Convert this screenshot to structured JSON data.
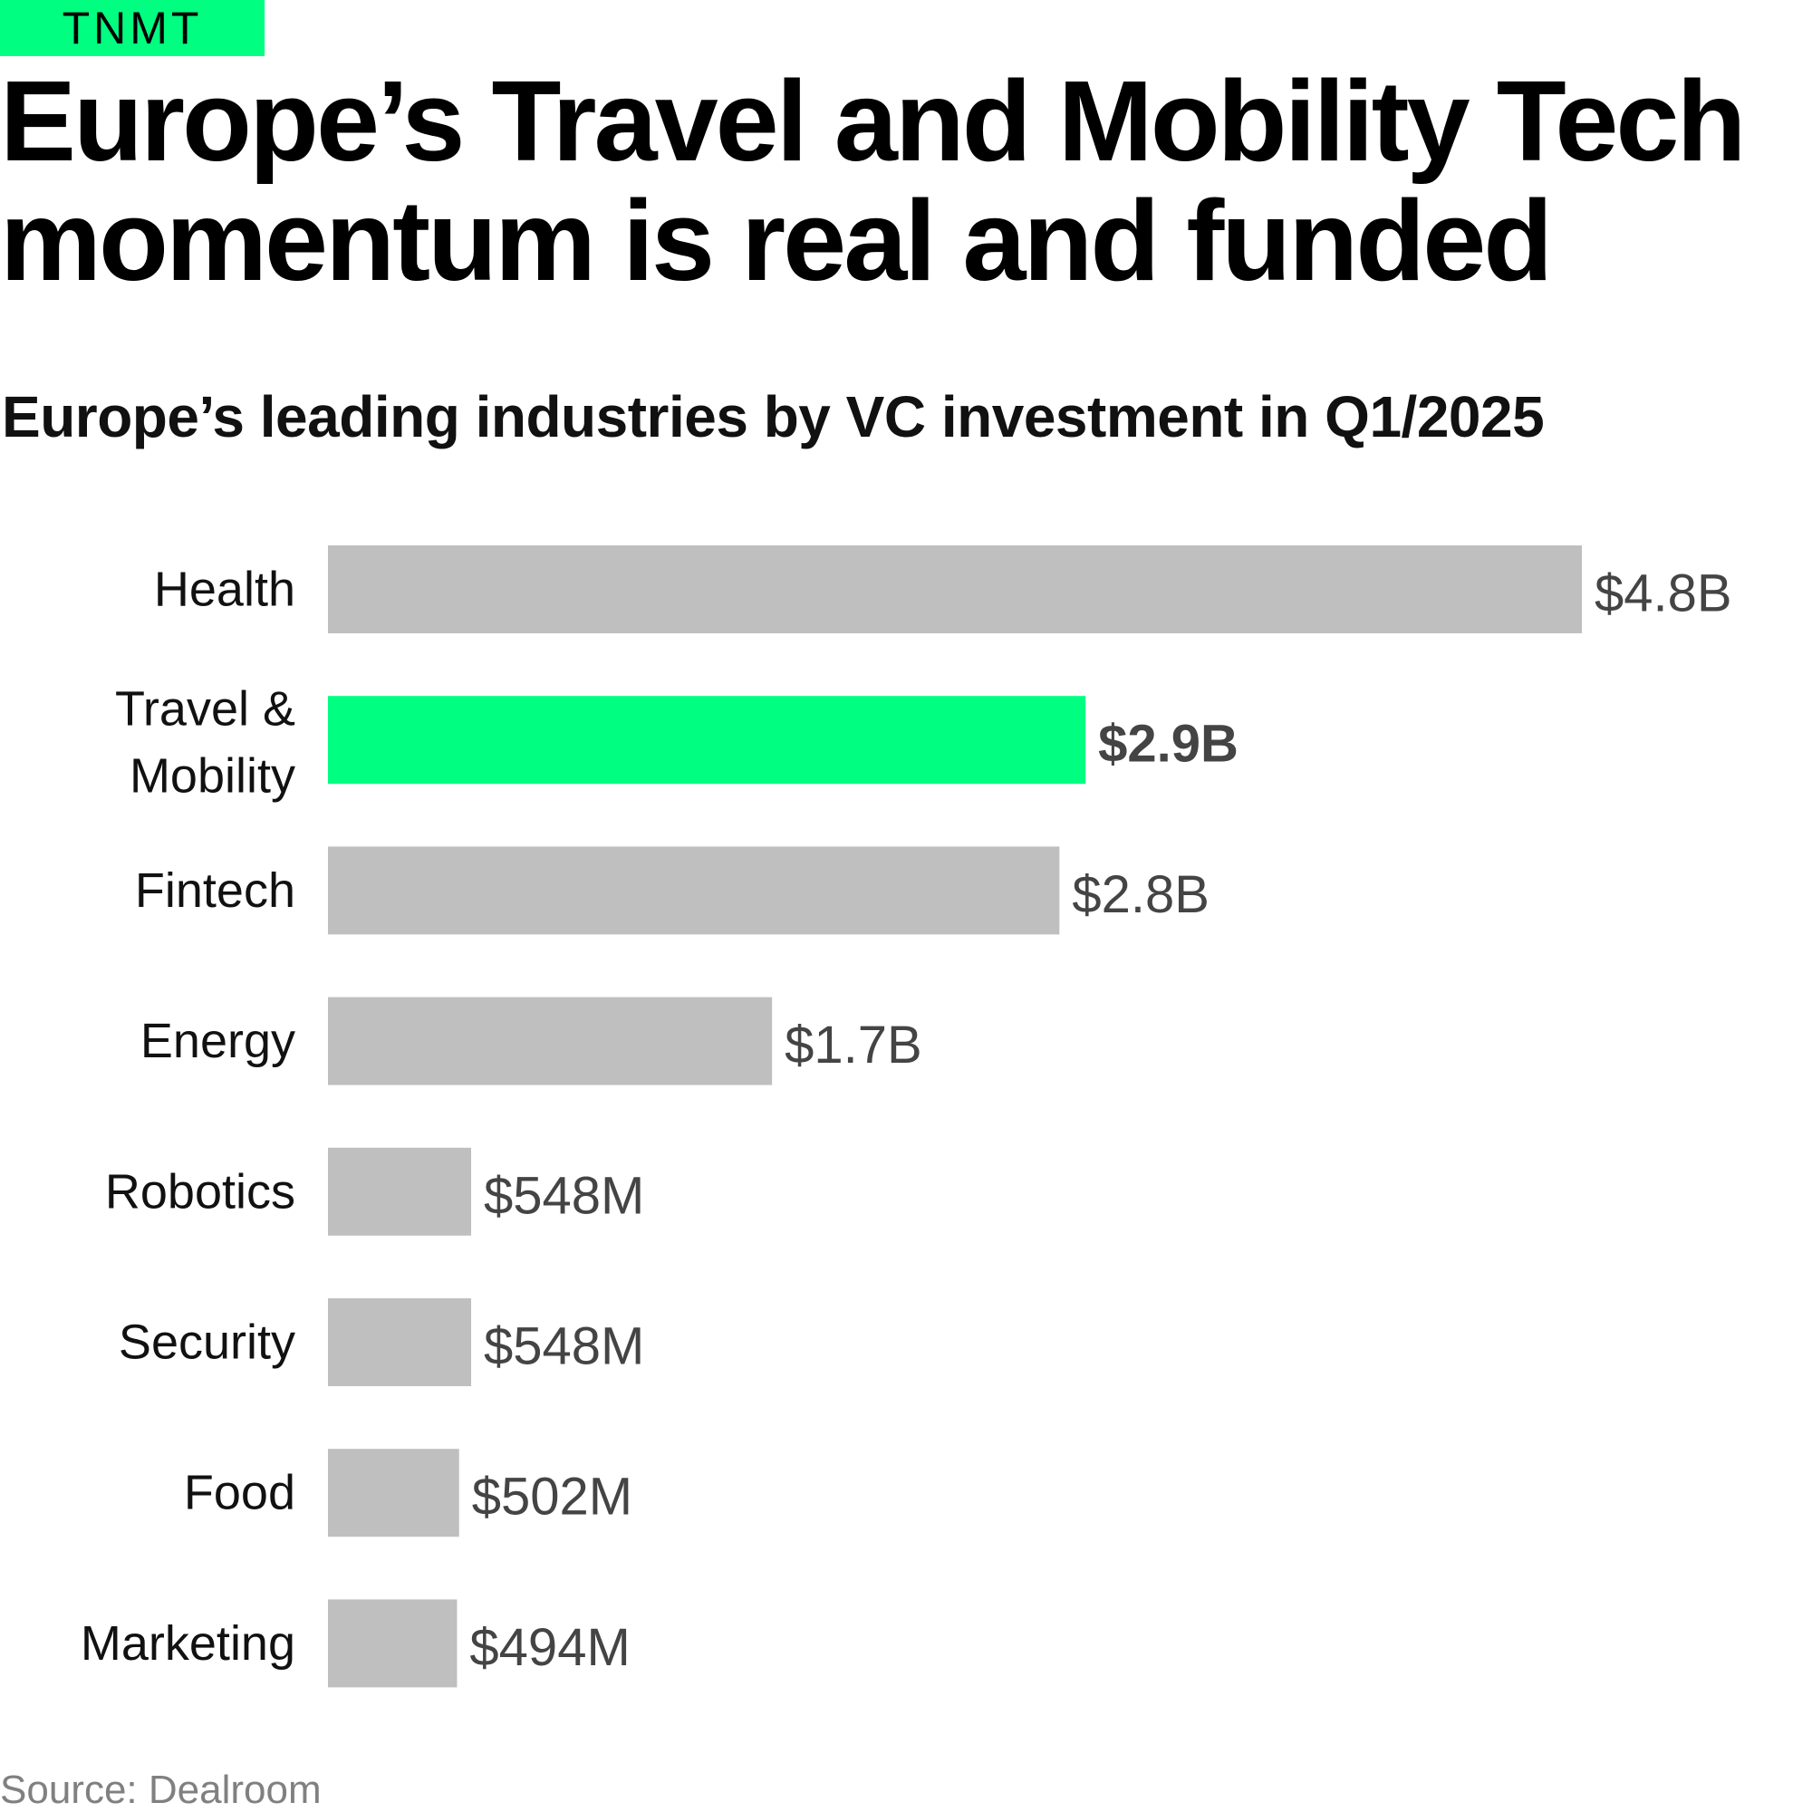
{
  "brand": {
    "name": "TNMT"
  },
  "headline": "Europe’s Travel and Mobility Tech momentum is real and funded",
  "source": "Source: Dealroom",
  "colors": {
    "accent": "#00ff80",
    "bar": "#bfbfbf",
    "label": "#444444",
    "category": "#111111"
  },
  "chart_data": {
    "type": "bar",
    "orientation": "horizontal",
    "title": "Europe’s leading industries by VC investment in Q1/2025",
    "categories": [
      "Health",
      "Travel & Mobility",
      "Fintech",
      "Energy",
      "Robotics",
      "Security",
      "Food",
      "Marketing"
    ],
    "values": [
      4800,
      2900,
      2800,
      1700,
      548,
      548,
      502,
      494
    ],
    "unit": "$M",
    "value_labels": [
      "$4.8B",
      "$2.9B",
      "$2.8B",
      "$1.7B",
      "$548M",
      "$548M",
      "$502M",
      "$494M"
    ],
    "highlight": "Travel & Mobility",
    "xlim": [
      0,
      4800
    ],
    "grid": false,
    "legend": "none"
  }
}
